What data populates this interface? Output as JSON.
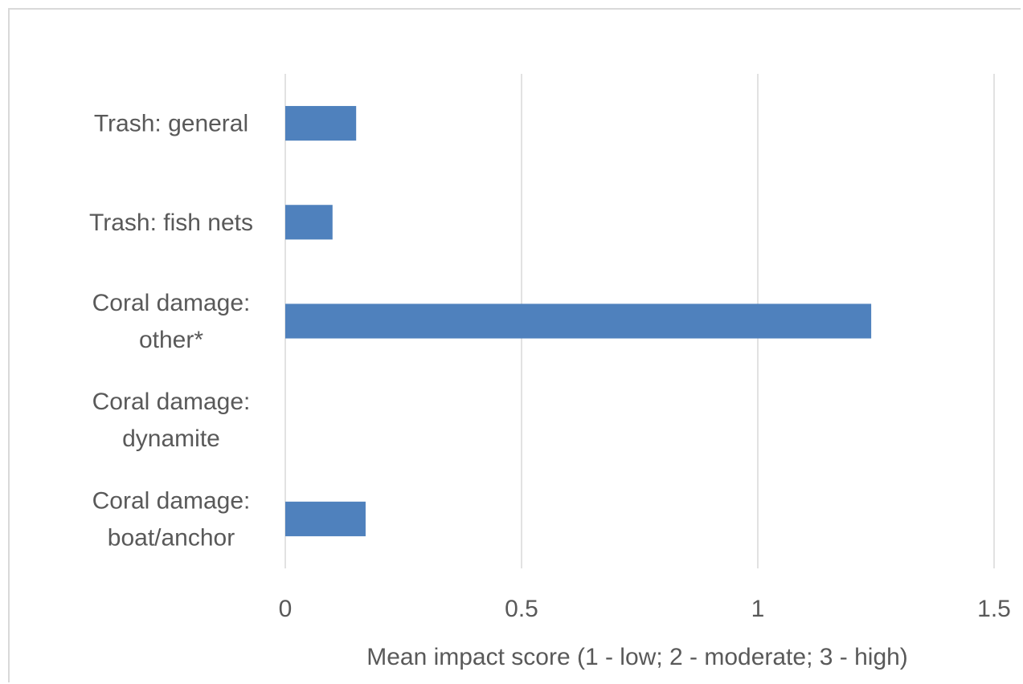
{
  "chart_data": {
    "type": "bar",
    "orientation": "horizontal",
    "categories": [
      [
        "Trash: general"
      ],
      [
        "Trash: fish nets"
      ],
      [
        "Coral damage:",
        "other*"
      ],
      [
        "Coral damage:",
        "dynamite"
      ],
      [
        "Coral damage:",
        "boat/anchor"
      ]
    ],
    "values": [
      0.15,
      0.1,
      1.24,
      0,
      0.17
    ],
    "xlim": [
      0,
      1.5
    ],
    "xticks": [
      "0",
      "0.5",
      "1",
      "1.5"
    ],
    "xlabel": "Mean impact score (1 - low; 2 - moderate; 3 - high)",
    "ylabel": "",
    "title": "",
    "grid": "vertical",
    "legend": "none",
    "bar_color": "#4f81bd",
    "grid_color": "#d9d9d9",
    "text_color": "#595959"
  }
}
